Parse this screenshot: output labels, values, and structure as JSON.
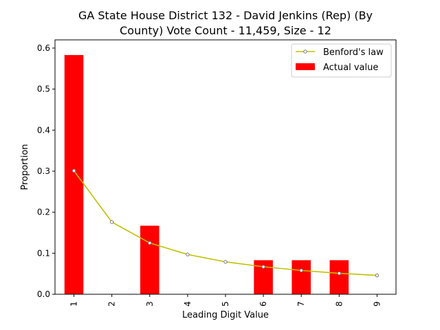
{
  "chart_data": {
    "type": "bar",
    "title_line1": "GA State House District 132 - David Jenkins (Rep) (By",
    "title_line2": "County) Vote Count - 11,459, Size - 12",
    "xlabel": "Leading Digit Value",
    "ylabel": "Proportion",
    "categories": [
      "1",
      "2",
      "3",
      "4",
      "5",
      "6",
      "7",
      "8",
      "9"
    ],
    "ylim": [
      0,
      0.62
    ],
    "yticks": [
      "0.0",
      "0.1",
      "0.2",
      "0.3",
      "0.4",
      "0.5",
      "0.6"
    ],
    "ytick_values": [
      0,
      0.1,
      0.2,
      0.3,
      0.4,
      0.5,
      0.6
    ],
    "grid": false,
    "legend_position": "top-right",
    "series": [
      {
        "name": "Actual value",
        "kind": "bar",
        "color": "#ff0000",
        "values": [
          0.583,
          0,
          0.167,
          0,
          0,
          0.083,
          0.083,
          0.083,
          0
        ]
      },
      {
        "name": "Benford's law",
        "kind": "line",
        "color": "#bfbf00",
        "values": [
          0.301,
          0.176,
          0.125,
          0.097,
          0.079,
          0.067,
          0.058,
          0.051,
          0.046
        ]
      }
    ]
  }
}
